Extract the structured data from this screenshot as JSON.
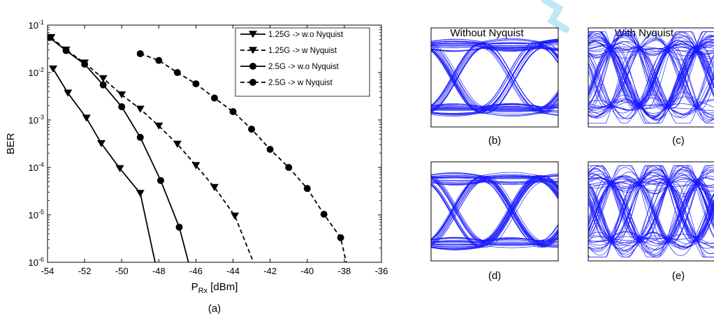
{
  "chart_data": [
    {
      "type": "line",
      "panel_label": "(a)",
      "xlabel_main": "P",
      "xlabel_sub": "Rx",
      "xlabel_unit": " [dBm]",
      "ylabel": "BER",
      "xlim": [
        -54,
        -36
      ],
      "ylim": [
        1e-06,
        0.1
      ],
      "yscale": "log",
      "xticks": [
        "-54",
        "-52",
        "-50",
        "-48",
        "-46",
        "-44",
        "-42",
        "-40",
        "-38",
        "-36"
      ],
      "yticks": [
        {
          "base": "10",
          "exp": "-1"
        },
        {
          "base": "10",
          "exp": "-2"
        },
        {
          "base": "10",
          "exp": "-3"
        },
        {
          "base": "10",
          "exp": "-4"
        },
        {
          "base": "10",
          "exp": "-5"
        },
        {
          "base": "10",
          "exp": "-6"
        }
      ],
      "grid": false,
      "legend_position": "top-right",
      "series": [
        {
          "name": "1.25G -> w.o Nyquist",
          "marker": "triangle-down",
          "line": "solid",
          "x": [
            -53.7,
            -52.9,
            -51.9,
            -51.1,
            -50.1,
            -49.0,
            -48.2
          ],
          "y": [
            0.012,
            0.0037,
            0.0011,
            0.00032,
            9.5e-05,
            2.85e-05,
            1e-06
          ]
        },
        {
          "name": "1.25G -> w Nyquist",
          "marker": "triangle-down",
          "line": "dashed",
          "x": [
            -53.8,
            -53.0,
            -52.0,
            -51.0,
            -50.0,
            -49.0,
            -48.0,
            -47.0,
            -46.0,
            -45.0,
            -43.9,
            -42.9
          ],
          "y": [
            0.055,
            0.03,
            0.016,
            0.0075,
            0.0034,
            0.0017,
            0.00075,
            0.00031,
            0.00011,
            3.8e-05,
            9.5e-06,
            1e-06
          ]
        },
        {
          "name": "2.5G -> w.o Nyquist",
          "marker": "circle",
          "line": "solid",
          "x": [
            -53.9,
            -53.0,
            -52.0,
            -51.0,
            -50.0,
            -49.0,
            -47.9,
            -46.9,
            -46.4
          ],
          "y": [
            0.055,
            0.029,
            0.015,
            0.0055,
            0.0019,
            0.00043,
            5.3e-05,
            5.5e-06,
            1e-06
          ]
        },
        {
          "name": "2.5G -> w Nyquist",
          "marker": "circle",
          "line": "dashed",
          "x": [
            -49.0,
            -48.0,
            -47.0,
            -46.0,
            -45.0,
            -44.0,
            -43.0,
            -42.0,
            -41.0,
            -40.0,
            -39.1,
            -38.2,
            -37.9
          ],
          "y": [
            0.025,
            0.018,
            0.01,
            0.0058,
            0.0029,
            0.0015,
            0.00064,
            0.00024,
            0.0001,
            3.6e-05,
            1.03e-05,
            3.3e-06,
            1e-06
          ]
        }
      ]
    },
    {
      "type": "eye-diagram",
      "column_titles": [
        "Without Nyquist",
        "With Nyquist"
      ],
      "panels": [
        {
          "label": "(b)",
          "style": "no-nyquist"
        },
        {
          "label": "(c)",
          "style": "nyquist"
        },
        {
          "label": "(d)",
          "style": "no-nyquist"
        },
        {
          "label": "(e)",
          "style": "nyquist"
        }
      ]
    }
  ],
  "colors": {
    "trace": "#1a1aff",
    "series": "#000000",
    "watermark": "#bfe6f7"
  }
}
